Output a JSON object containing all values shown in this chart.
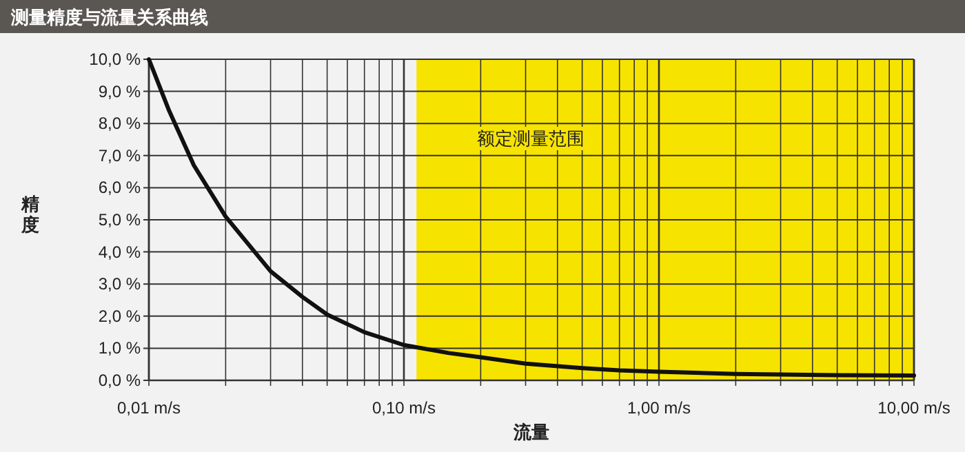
{
  "chart_data": {
    "type": "line",
    "title": "测量精度与流量关系曲线",
    "xlabel": "流量",
    "ylabel": "精度",
    "log": "x",
    "grid": true,
    "x": [
      0.01,
      0.012,
      0.015,
      0.02,
      0.03,
      0.04,
      0.05,
      0.07,
      0.1,
      0.15,
      0.2,
      0.3,
      0.5,
      0.7,
      1,
      2,
      5,
      10
    ],
    "series": [
      {
        "color": "#111111",
        "values": [
          10,
          8.4,
          6.7,
          5.1,
          3.4,
          2.6,
          2.05,
          1.5,
          1.1,
          0.85,
          0.72,
          0.52,
          0.38,
          0.31,
          0.27,
          0.2,
          0.16,
          0.15
        ]
      }
    ],
    "xlim": [
      0.01,
      10
    ],
    "ylim": [
      0,
      10
    ],
    "xticks": [
      {
        "value": 0.01,
        "label": "0,01 m/s"
      },
      {
        "value": 0.02,
        "label": null
      },
      {
        "value": 0.03,
        "label": null
      },
      {
        "value": 0.04,
        "label": null
      },
      {
        "value": 0.05,
        "label": null
      },
      {
        "value": 0.06,
        "label": null
      },
      {
        "value": 0.07,
        "label": null
      },
      {
        "value": 0.08,
        "label": null
      },
      {
        "value": 0.09,
        "label": null
      },
      {
        "value": 0.1,
        "label": "0,10 m/s"
      },
      {
        "value": 0.2,
        "label": null
      },
      {
        "value": 0.3,
        "label": null
      },
      {
        "value": 0.4,
        "label": null
      },
      {
        "value": 0.5,
        "label": null
      },
      {
        "value": 0.6,
        "label": null
      },
      {
        "value": 0.7,
        "label": null
      },
      {
        "value": 0.8,
        "label": null
      },
      {
        "value": 0.9,
        "label": null
      },
      {
        "value": 1,
        "label": "1,00 m/s"
      },
      {
        "value": 2,
        "label": null
      },
      {
        "value": 3,
        "label": null
      },
      {
        "value": 4,
        "label": null
      },
      {
        "value": 5,
        "label": null
      },
      {
        "value": 6,
        "label": null
      },
      {
        "value": 7,
        "label": null
      },
      {
        "value": 8,
        "label": null
      },
      {
        "value": 9,
        "label": null
      },
      {
        "value": 10,
        "label": "10,00 m/s"
      }
    ],
    "yticks": [
      {
        "value": 0,
        "label": "0,0 %"
      },
      {
        "value": 1,
        "label": "1,0 %"
      },
      {
        "value": 2,
        "label": "2,0 %"
      },
      {
        "value": 3,
        "label": "3,0 %"
      },
      {
        "value": 4,
        "label": "4,0 %"
      },
      {
        "value": 5,
        "label": "5,0 %"
      },
      {
        "value": 6,
        "label": "6,0 %"
      },
      {
        "value": 7,
        "label": "7,0 %"
      },
      {
        "value": 8,
        "label": "8,0 %"
      },
      {
        "value": 9,
        "label": "9,0 %"
      },
      {
        "value": 10,
        "label": "10,0 %"
      }
    ],
    "bands": [
      {
        "axis": "x",
        "from": 0.112,
        "to": 10,
        "label": "额定测量范围",
        "color": "#f7e300"
      }
    ]
  }
}
